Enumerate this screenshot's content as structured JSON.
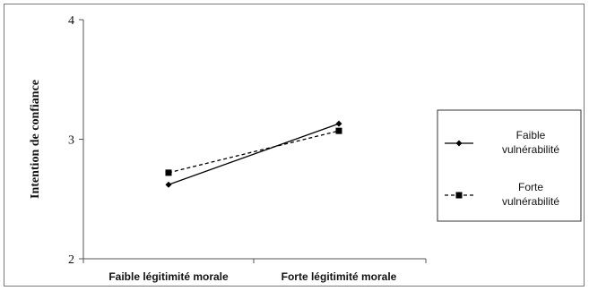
{
  "chart_data": {
    "type": "line",
    "categories": [
      "Faible légitimité morale",
      "Forte légitimité morale"
    ],
    "series": [
      {
        "name": "Faible vulnérabilité",
        "values": [
          2.62,
          3.13
        ],
        "color": "#000000",
        "line_style": "solid",
        "marker": "diamond"
      },
      {
        "name": "Forte vulnérabilité",
        "values": [
          2.72,
          3.07
        ],
        "color": "#000000",
        "line_style": "dashed",
        "marker": "square"
      }
    ],
    "title": "",
    "xlabel": "",
    "ylabel": "Intention de confiance",
    "ylim": [
      2,
      4
    ],
    "yticks": [
      2,
      3,
      4
    ],
    "grid": false,
    "legend_position": "right"
  }
}
